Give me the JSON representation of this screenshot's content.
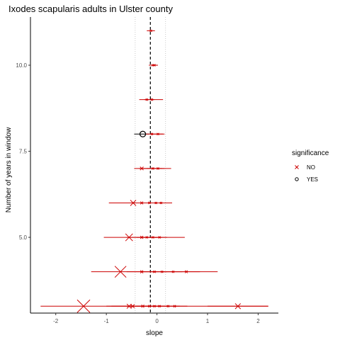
{
  "chart_data": {
    "type": "scatter",
    "title": "Ixodes scapularis adults in Ulster county",
    "xlabel": "slope",
    "ylabel": "Number of years in window",
    "xlim": [
      -2.5,
      2.4
    ],
    "ylim": [
      2.8,
      11.4
    ],
    "x_ticks": [
      -2,
      -1,
      0,
      1,
      2
    ],
    "x_tick_labels": [
      "-2",
      "-1",
      "0",
      "1",
      "2"
    ],
    "y_ticks": [
      5.0,
      7.5,
      10.0
    ],
    "y_tick_labels": [
      "5.0",
      "7.5",
      "10.0"
    ],
    "reference_lines": {
      "mean_slope": -0.13,
      "dotted": [
        -0.43,
        0.17
      ]
    },
    "legend": {
      "title": "significance",
      "position": "right",
      "entries": [
        {
          "label": "NO",
          "color": "#cc0000",
          "marker": "x"
        },
        {
          "label": "YES",
          "color": "#000000",
          "marker": "circle"
        }
      ]
    },
    "grid": false,
    "points": [
      {
        "window": 11,
        "slope": -0.12,
        "ci": [
          -0.2,
          -0.04
        ],
        "significant": "NO"
      },
      {
        "window": 10,
        "slope": -0.08,
        "ci": [
          -0.16,
          0.0
        ],
        "significant": "NO"
      },
      {
        "window": 10,
        "slope": -0.05,
        "ci": [
          -0.1,
          0.02
        ],
        "significant": "NO"
      },
      {
        "window": 9,
        "slope": -0.2,
        "ci": [
          -0.35,
          -0.05
        ],
        "significant": "NO"
      },
      {
        "window": 9,
        "slope": -0.1,
        "ci": [
          -0.25,
          0.12
        ],
        "significant": "NO"
      },
      {
        "window": 8,
        "slope": -0.28,
        "ci": [
          -0.45,
          -0.15
        ],
        "significant": "YES"
      },
      {
        "window": 8,
        "slope": -0.1,
        "ci": [
          -0.22,
          0.15
        ],
        "significant": "NO"
      },
      {
        "window": 8,
        "slope": 0.02,
        "ci": [
          -0.1,
          0.12
        ],
        "significant": "NO"
      },
      {
        "window": 7,
        "slope": -0.3,
        "ci": [
          -0.45,
          0.28
        ],
        "significant": "NO"
      },
      {
        "window": 7,
        "slope": -0.08,
        "ci": [
          -0.35,
          0.1
        ],
        "significant": "NO"
      },
      {
        "window": 7,
        "slope": 0.02,
        "ci": [
          -0.2,
          0.15
        ],
        "significant": "NO"
      },
      {
        "window": 6,
        "slope": -0.47,
        "ci": [
          -0.95,
          0.3
        ],
        "significant": "NO"
      },
      {
        "window": 6,
        "slope": -0.3,
        "ci": [
          -0.6,
          0.0
        ],
        "significant": "NO"
      },
      {
        "window": 6,
        "slope": -0.15,
        "ci": [
          -0.4,
          0.1
        ],
        "significant": "NO"
      },
      {
        "window": 6,
        "slope": -0.02,
        "ci": [
          -0.2,
          0.15
        ],
        "significant": "NO"
      },
      {
        "window": 6,
        "slope": 0.08,
        "ci": [
          -0.1,
          0.25
        ],
        "significant": "NO"
      },
      {
        "window": 5,
        "slope": -0.55,
        "ci": [
          -1.05,
          0.55
        ],
        "significant": "NO"
      },
      {
        "window": 5,
        "slope": -0.3,
        "ci": [
          -0.6,
          0.0
        ],
        "significant": "NO"
      },
      {
        "window": 5,
        "slope": -0.2,
        "ci": [
          -0.4,
          0.0
        ],
        "significant": "NO"
      },
      {
        "window": 5,
        "slope": -0.08,
        "ci": [
          -0.3,
          0.1
        ],
        "significant": "NO"
      },
      {
        "window": 5,
        "slope": 0.05,
        "ci": [
          -0.1,
          0.2
        ],
        "significant": "NO"
      },
      {
        "window": 4,
        "slope": -0.72,
        "ci": [
          -1.3,
          1.2
        ],
        "significant": "NO"
      },
      {
        "window": 4,
        "slope": -0.3,
        "ci": [
          -0.6,
          0.0
        ],
        "significant": "NO"
      },
      {
        "window": 4,
        "slope": -0.05,
        "ci": [
          -0.3,
          0.2
        ],
        "significant": "NO"
      },
      {
        "window": 4,
        "slope": 0.1,
        "ci": [
          -0.1,
          0.3
        ],
        "significant": "NO"
      },
      {
        "window": 4,
        "slope": 0.32,
        "ci": [
          0.1,
          0.5
        ],
        "significant": "NO"
      },
      {
        "window": 4,
        "slope": 0.58,
        "ci": [
          0.3,
          0.85
        ],
        "significant": "NO"
      },
      {
        "window": 3,
        "slope": -1.45,
        "ci": [
          -2.3,
          2.2
        ],
        "significant": "NO"
      },
      {
        "window": 3,
        "slope": -0.55,
        "ci": [
          -1.0,
          0.0
        ],
        "significant": "NO"
      },
      {
        "window": 3,
        "slope": -0.48,
        "ci": [
          -0.9,
          -0.1
        ],
        "significant": "NO"
      },
      {
        "window": 3,
        "slope": -0.28,
        "ci": [
          -0.6,
          0.0
        ],
        "significant": "NO"
      },
      {
        "window": 3,
        "slope": -0.15,
        "ci": [
          -0.4,
          0.1
        ],
        "significant": "NO"
      },
      {
        "window": 3,
        "slope": -0.05,
        "ci": [
          -0.2,
          0.1
        ],
        "significant": "NO"
      },
      {
        "window": 3,
        "slope": 0.05,
        "ci": [
          -0.1,
          0.2
        ],
        "significant": "NO"
      },
      {
        "window": 3,
        "slope": 0.22,
        "ci": [
          0.0,
          0.45
        ],
        "significant": "NO"
      },
      {
        "window": 3,
        "slope": 0.35,
        "ci": [
          0.1,
          0.6
        ],
        "significant": "NO"
      },
      {
        "window": 3,
        "slope": 1.6,
        "ci": [
          1.0,
          2.2
        ],
        "significant": "NO"
      }
    ]
  }
}
